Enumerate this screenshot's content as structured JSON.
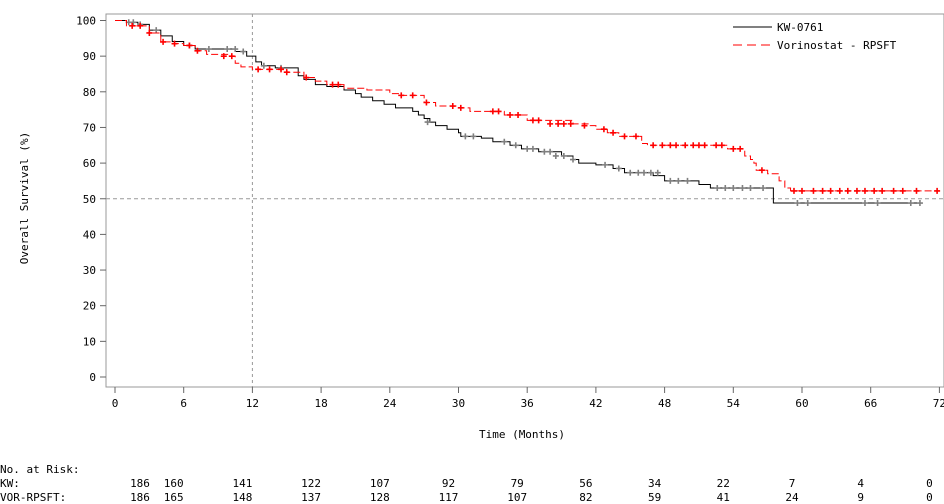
{
  "chart_data": {
    "type": "line",
    "title": "",
    "xlabel": "Time (Months)",
    "ylabel": "Overall Survival (%)",
    "xlim": [
      0,
      72
    ],
    "ylim": [
      0,
      100
    ],
    "x_ticks": [
      "0",
      "6",
      "12",
      "18",
      "24",
      "30",
      "36",
      "42",
      "48",
      "54",
      "60",
      "66",
      "72"
    ],
    "y_ticks": [
      "0",
      "10",
      "20",
      "30",
      "40",
      "50",
      "60",
      "70",
      "80",
      "90",
      "100"
    ],
    "reference_lines": {
      "vertical_x": 12,
      "horizontal_y": 50,
      "style": "dashed"
    },
    "legend": {
      "placement": "top-right",
      "entries": [
        "KW-0761",
        "Vorinostat - RPSFT"
      ]
    },
    "series": [
      {
        "name": "KW-0761",
        "color": "#000000",
        "censor_color": "#808080",
        "steps": [
          [
            0,
            100
          ],
          [
            1,
            99.5
          ],
          [
            2,
            98.9
          ],
          [
            3,
            97.3
          ],
          [
            4,
            95.7
          ],
          [
            5,
            94.1
          ],
          [
            6,
            93.0
          ],
          [
            7,
            92.0
          ],
          [
            10.5,
            91.3
          ],
          [
            11.5,
            90
          ],
          [
            12.3,
            88.4
          ],
          [
            12.8,
            87.3
          ],
          [
            14,
            86.7
          ],
          [
            16,
            84.5
          ],
          [
            16.5,
            83.5
          ],
          [
            17.5,
            82
          ],
          [
            18.5,
            81.5
          ],
          [
            20,
            80.5
          ],
          [
            21,
            79.5
          ],
          [
            21.5,
            78.5
          ],
          [
            22.5,
            77.5
          ],
          [
            23.5,
            76.5
          ],
          [
            24.5,
            75.5
          ],
          [
            26,
            74.5
          ],
          [
            26.5,
            73.5
          ],
          [
            27,
            72.5
          ],
          [
            27.5,
            71.5
          ],
          [
            28,
            70.5
          ],
          [
            29,
            69.5
          ],
          [
            30,
            68.5
          ],
          [
            30.2,
            67.5
          ],
          [
            32,
            67
          ],
          [
            33,
            66
          ],
          [
            34.5,
            65
          ],
          [
            35.5,
            64
          ],
          [
            37,
            63.2
          ],
          [
            39,
            62
          ],
          [
            40,
            61
          ],
          [
            40.5,
            60
          ],
          [
            42,
            59.5
          ],
          [
            43.5,
            58.5
          ],
          [
            44.5,
            57.3
          ],
          [
            47,
            56.5
          ],
          [
            48,
            55
          ],
          [
            51,
            54
          ],
          [
            52,
            53
          ],
          [
            56,
            53
          ],
          [
            57.5,
            48.8
          ],
          [
            70.5,
            48.8
          ]
        ],
        "censored": [
          [
            1.2,
            99.5
          ],
          [
            1.6,
            99.5
          ],
          [
            2.2,
            98.9
          ],
          [
            3.6,
            97.3
          ],
          [
            6.5,
            93.0
          ],
          [
            8.2,
            92.0
          ],
          [
            9.8,
            92.0
          ],
          [
            10.5,
            92.0
          ],
          [
            11.2,
            91.3
          ],
          [
            13,
            87.3
          ],
          [
            14.5,
            86.7
          ],
          [
            27.3,
            71.5
          ],
          [
            30.6,
            67.5
          ],
          [
            31.3,
            67.5
          ],
          [
            34,
            66
          ],
          [
            35,
            65
          ],
          [
            36,
            64
          ],
          [
            36.5,
            64
          ],
          [
            37.5,
            63.2
          ],
          [
            38,
            63.2
          ],
          [
            38.5,
            62
          ],
          [
            39.2,
            62
          ],
          [
            40,
            61
          ],
          [
            42.8,
            59.5
          ],
          [
            44,
            58.5
          ],
          [
            45,
            57.3
          ],
          [
            45.7,
            57.3
          ],
          [
            46.2,
            57.3
          ],
          [
            46.8,
            57.3
          ],
          [
            47.4,
            57.3
          ],
          [
            48.5,
            55
          ],
          [
            49.2,
            55
          ],
          [
            50,
            55
          ],
          [
            52.6,
            53
          ],
          [
            53.3,
            53
          ],
          [
            54,
            53
          ],
          [
            54.8,
            53
          ],
          [
            55.5,
            53
          ],
          [
            56.6,
            53
          ],
          [
            59.6,
            48.8
          ],
          [
            60.5,
            48.8
          ],
          [
            65.5,
            48.8
          ],
          [
            66.6,
            48.8
          ],
          [
            69.5,
            48.8
          ],
          [
            70.3,
            48.8
          ]
        ]
      },
      {
        "name": "Vorinostat - RPSFT",
        "color": "#ff0000",
        "censor_color": "#ff0000",
        "steps": [
          [
            0,
            100
          ],
          [
            1,
            98.5
          ],
          [
            3,
            96.5
          ],
          [
            4,
            94
          ],
          [
            5,
            93.5
          ],
          [
            6,
            93
          ],
          [
            7,
            91.5
          ],
          [
            8,
            90.5
          ],
          [
            10,
            90
          ],
          [
            10.5,
            88
          ],
          [
            11,
            87
          ],
          [
            12,
            86.3
          ],
          [
            15,
            85.5
          ],
          [
            16.5,
            84
          ],
          [
            17.5,
            83
          ],
          [
            18.5,
            82
          ],
          [
            20,
            81
          ],
          [
            22,
            80.5
          ],
          [
            24,
            79.5
          ],
          [
            25,
            79
          ],
          [
            27,
            77
          ],
          [
            28,
            76
          ],
          [
            30,
            75.5
          ],
          [
            31,
            74.5
          ],
          [
            34,
            73.5
          ],
          [
            36,
            72
          ],
          [
            40,
            71
          ],
          [
            41.5,
            70.5
          ],
          [
            42,
            69.5
          ],
          [
            43,
            68.5
          ],
          [
            44,
            67.5
          ],
          [
            46,
            65.5
          ],
          [
            46.5,
            65
          ],
          [
            53.5,
            64
          ],
          [
            55,
            62
          ],
          [
            55.5,
            61
          ],
          [
            55.8,
            60
          ],
          [
            56,
            58
          ],
          [
            57,
            57
          ],
          [
            58,
            55
          ],
          [
            58.5,
            53
          ],
          [
            59,
            52.2
          ],
          [
            72,
            52.2
          ]
        ],
        "censored": [
          [
            1.5,
            98.5
          ],
          [
            2.2,
            98.5
          ],
          [
            3,
            96.5
          ],
          [
            4.2,
            94
          ],
          [
            5.2,
            93.5
          ],
          [
            6.5,
            93
          ],
          [
            7.2,
            91.5
          ],
          [
            9.5,
            90
          ],
          [
            10.2,
            90
          ],
          [
            12.5,
            86.3
          ],
          [
            13.5,
            86.3
          ],
          [
            14.5,
            86.3
          ],
          [
            15,
            85.5
          ],
          [
            16.7,
            84
          ],
          [
            19,
            82
          ],
          [
            19.5,
            82
          ],
          [
            25,
            79
          ],
          [
            26,
            79
          ],
          [
            27.2,
            77
          ],
          [
            29.5,
            76
          ],
          [
            30.2,
            75.5
          ],
          [
            33,
            74.5
          ],
          [
            33.5,
            74.5
          ],
          [
            34.5,
            73.5
          ],
          [
            35.2,
            73.5
          ],
          [
            36.5,
            72
          ],
          [
            37,
            72
          ],
          [
            38,
            71
          ],
          [
            38.7,
            71
          ],
          [
            39.2,
            71
          ],
          [
            39.8,
            71
          ],
          [
            41,
            70.5
          ],
          [
            42.7,
            69.5
          ],
          [
            43.5,
            68.5
          ],
          [
            44.5,
            67.5
          ],
          [
            45.5,
            67.5
          ],
          [
            47,
            65
          ],
          [
            47.8,
            65
          ],
          [
            48.5,
            65
          ],
          [
            49,
            65
          ],
          [
            49.8,
            65
          ],
          [
            50.5,
            65
          ],
          [
            51,
            65
          ],
          [
            51.5,
            65
          ],
          [
            52.5,
            65
          ],
          [
            53,
            65
          ],
          [
            54,
            64
          ],
          [
            54.6,
            64
          ],
          [
            56.5,
            58
          ],
          [
            59.3,
            52.2
          ],
          [
            60,
            52.2
          ],
          [
            61,
            52.2
          ],
          [
            61.8,
            52.2
          ],
          [
            62.5,
            52.2
          ],
          [
            63.3,
            52.2
          ],
          [
            64,
            52.2
          ],
          [
            64.8,
            52.2
          ],
          [
            65.5,
            52.2
          ],
          [
            66.3,
            52.2
          ],
          [
            67,
            52.2
          ],
          [
            68,
            52.2
          ],
          [
            68.8,
            52.2
          ],
          [
            70,
            52.2
          ],
          [
            71.8,
            52.2
          ]
        ]
      }
    ],
    "at_risk": {
      "header": "No. at Risk:",
      "rows": [
        {
          "label": "KW:",
          "values": [
            "186",
            "160",
            "141",
            "122",
            "107",
            "92",
            "79",
            "56",
            "34",
            "22",
            "7",
            "4",
            "0"
          ]
        },
        {
          "label": "VOR-RPSFT:",
          "values": [
            "186",
            "165",
            "148",
            "137",
            "128",
            "117",
            "107",
            "82",
            "59",
            "41",
            "24",
            "9",
            "0"
          ]
        }
      ]
    }
  }
}
